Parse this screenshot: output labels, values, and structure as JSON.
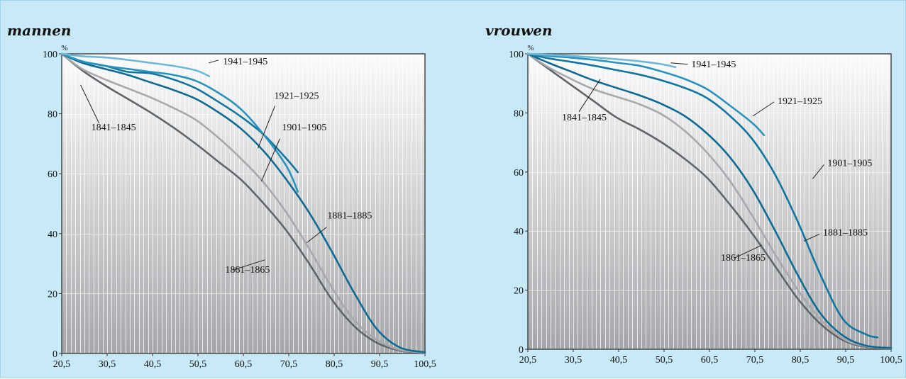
{
  "colors": {
    "1841-1845": "#616468",
    "1861-1865": "#a7a9ac",
    "1881-1885": "#0f6a93",
    "1901-1905": "#11769f",
    "1921-1925": "#2a93bd",
    "1941-1945": "#6fb7d8"
  },
  "chart_data": [
    {
      "type": "line",
      "title": "mannen",
      "ylabel": "%",
      "xlim": [
        20.5,
        100.5
      ],
      "ylim": [
        0,
        100
      ],
      "xticks": [
        "20,5",
        "30,5",
        "40,5",
        "50,5",
        "60,5",
        "70,5",
        "80,5",
        "90,5",
        "100,5"
      ],
      "yticks": [
        "0",
        "20",
        "40",
        "60",
        "80",
        "100"
      ],
      "series": [
        {
          "name": "1841–1845",
          "x": [
            20.5,
            25,
            30,
            35,
            40,
            45,
            50,
            55,
            60,
            65,
            70,
            75,
            80,
            85,
            90,
            95,
            100.5
          ],
          "y": [
            100,
            94.5,
            89.5,
            85,
            80.5,
            75.5,
            70,
            64,
            58,
            50,
            41,
            30,
            18,
            9,
            3.5,
            1,
            0.2
          ]
        },
        {
          "name": "1861–1865",
          "x": [
            20.5,
            25,
            30,
            35,
            40,
            45,
            50,
            55,
            60,
            65,
            70,
            75,
            80,
            85,
            90,
            95,
            100.5
          ],
          "y": [
            100,
            95,
            91.5,
            88.5,
            85.5,
            82,
            78,
            72,
            65,
            57,
            47,
            35,
            22,
            11,
            4.5,
            1.2,
            0.3
          ]
        },
        {
          "name": "1881–1885",
          "x": [
            20.5,
            25,
            30,
            35,
            40,
            45,
            50,
            55,
            60,
            65,
            70,
            75,
            80,
            85,
            90,
            95,
            100.5
          ],
          "y": [
            100,
            97,
            95,
            93,
            90.5,
            88,
            85,
            80.5,
            75,
            67.5,
            58,
            47,
            34,
            20,
            8,
            2,
            0.4
          ]
        },
        {
          "name": "1901–1905",
          "x": [
            20.5,
            25,
            30,
            35,
            40,
            45,
            50,
            55,
            60,
            65,
            70,
            72.5
          ],
          "y": [
            100,
            97.5,
            96,
            94,
            93.5,
            91.5,
            88.5,
            84,
            79,
            73,
            65,
            60.5
          ]
        },
        {
          "name": "1921–1925",
          "x": [
            20.5,
            25,
            30,
            35,
            40,
            45,
            50,
            55,
            60,
            65,
            70,
            72.5
          ],
          "y": [
            100,
            97.5,
            96,
            95,
            94,
            93,
            91,
            87,
            81.5,
            73,
            62.5,
            54
          ]
        },
        {
          "name": "1941–1945",
          "x": [
            20.5,
            25,
            30,
            35,
            40,
            45,
            50,
            53
          ],
          "y": [
            100,
            99.2,
            98.8,
            98,
            97,
            96,
            94.5,
            92.5
          ]
        }
      ],
      "labels": [
        {
          "text": "1941–1945",
          "x": 56,
          "y": 96.5
        },
        {
          "text": "1921–1925",
          "x": 67.3,
          "y": 85
        },
        {
          "text": "1901–1905",
          "x": 69,
          "y": 74.5
        },
        {
          "text": "1881–1885",
          "x": 79,
          "y": 45
        },
        {
          "text": "1861–1865",
          "x": 56.5,
          "y": 27
        },
        {
          "text": "1841–1845",
          "x": 27,
          "y": 74.5
        }
      ]
    },
    {
      "type": "line",
      "title": "vrouwen",
      "ylabel": "%",
      "xlim": [
        20.5,
        100.5
      ],
      "ylim": [
        0,
        100
      ],
      "xticks": [
        "20,5",
        "30,5",
        "40,5",
        "50,5",
        "60,5",
        "70,5",
        "80,5",
        "90,5",
        "100,5"
      ],
      "yticks": [
        "0",
        "20",
        "40",
        "60",
        "80",
        "100"
      ],
      "series": [
        {
          "name": "1841–1845",
          "x": [
            20.5,
            25,
            30,
            35,
            40,
            45,
            50,
            55,
            60,
            65,
            70,
            75,
            80,
            85,
            90,
            95,
            100.5
          ],
          "y": [
            100,
            95,
            89.5,
            84,
            78.5,
            74.5,
            70,
            64.5,
            58,
            49,
            39,
            28,
            17,
            8.5,
            3,
            0.8,
            0.2
          ]
        },
        {
          "name": "1861–1865",
          "x": [
            20.5,
            25,
            30,
            35,
            40,
            45,
            50,
            55,
            60,
            65,
            70,
            75,
            80,
            85,
            90,
            95,
            100.5
          ],
          "y": [
            100,
            95.5,
            91.5,
            88,
            85.5,
            83,
            79.5,
            74,
            66.5,
            57,
            45,
            32,
            20,
            10,
            3.5,
            1,
            0.3
          ]
        },
        {
          "name": "1881–1885",
          "x": [
            20.5,
            25,
            30,
            35,
            40,
            45,
            50,
            55,
            60,
            65,
            70,
            75,
            80,
            85,
            90,
            95,
            100.5
          ],
          "y": [
            100,
            97,
            94,
            91,
            88.5,
            86,
            83,
            79,
            73,
            65,
            54,
            40,
            25,
            12,
            4.5,
            1.2,
            0.4
          ]
        },
        {
          "name": "1901–1905",
          "x": [
            20.5,
            25,
            30,
            35,
            40,
            45,
            50,
            55,
            60,
            65,
            70,
            75,
            80,
            85,
            90,
            95,
            97.5
          ],
          "y": [
            100,
            98.5,
            97.3,
            96,
            94.5,
            93,
            91,
            88.5,
            85,
            79,
            71,
            59,
            43,
            25,
            10,
            5,
            4
          ]
        },
        {
          "name": "1921–1925",
          "x": [
            20.5,
            25,
            30,
            35,
            40,
            45,
            50,
            55,
            60,
            65,
            70,
            72.5
          ],
          "y": [
            100,
            99.3,
            98.7,
            98,
            97,
            96,
            94,
            91.5,
            88,
            82.5,
            76.5,
            72.5
          ]
        },
        {
          "name": "1941–1945",
          "x": [
            20.5,
            25,
            30,
            35,
            40,
            45,
            50,
            53
          ],
          "y": [
            100,
            99.7,
            99.3,
            98.8,
            98.2,
            97.5,
            96.5,
            95.5
          ]
        }
      ],
      "labels": [
        {
          "text": "1941–1945",
          "x": 56.5,
          "y": 95.5
        },
        {
          "text": "1921–1925",
          "x": 75.5,
          "y": 83
        },
        {
          "text": "1901–1905",
          "x": 86.5,
          "y": 62
        },
        {
          "text": "1881–1885",
          "x": 85.5,
          "y": 38.5
        },
        {
          "text": "1861–1865",
          "x": 63,
          "y": 30
        },
        {
          "text": "1841–1845",
          "x": 28,
          "y": 77.5
        }
      ]
    }
  ]
}
